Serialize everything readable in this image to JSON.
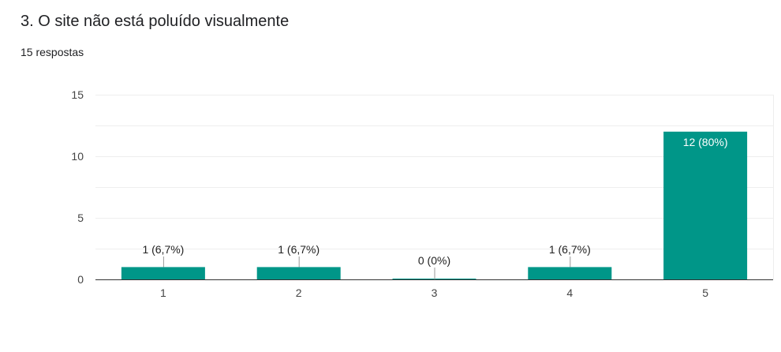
{
  "question": {
    "title": "3. O site não está poluído visualmente",
    "responses": "15 respostas"
  },
  "colors": {
    "bar": "#009688",
    "grid": "#eeeeee",
    "axis": "#333333",
    "leader": "#999999"
  },
  "chart_data": {
    "type": "bar",
    "categories": [
      "1",
      "2",
      "3",
      "4",
      "5"
    ],
    "values": [
      1,
      1,
      0,
      1,
      12
    ],
    "data_labels": [
      "1 (6,7%)",
      "1 (6,7%)",
      "0 (0%)",
      "1 (6,7%)",
      "12 (80%)"
    ],
    "yticks": [
      0,
      5,
      10,
      15
    ],
    "ylim": [
      0,
      15
    ],
    "grid": true,
    "xlabel": "",
    "ylabel": ""
  }
}
